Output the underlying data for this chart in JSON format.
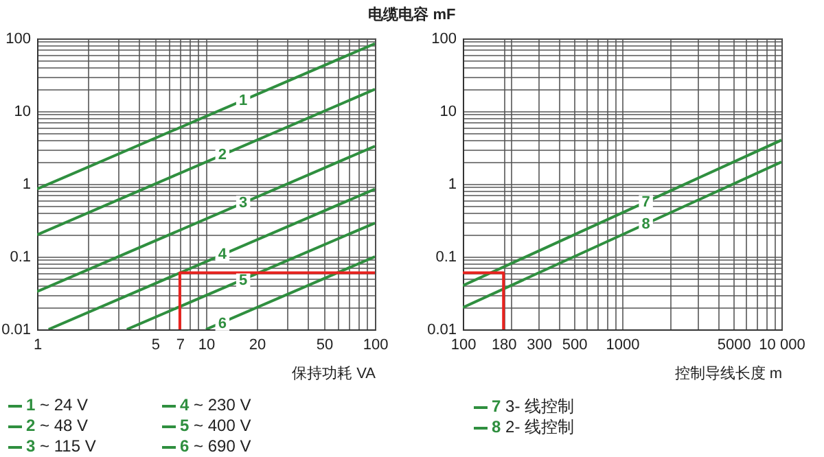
{
  "chart_data": [
    {
      "type": "line",
      "title": "电缆电容 mF",
      "xlabel": "保持功耗 VA",
      "log": "xy",
      "grid": true,
      "legend": "bottom",
      "xlim": [
        1,
        100
      ],
      "ylim": [
        0.01,
        100
      ],
      "xticks": [
        1,
        5,
        7,
        10,
        20,
        50,
        100
      ],
      "yticks": [
        0.01,
        0.1,
        1,
        10,
        100
      ],
      "series": [
        {
          "name": "1 ~ 24 V",
          "color": "#2f8f3f",
          "x": [
            1,
            100
          ],
          "values": [
            0.85,
            85
          ]
        },
        {
          "name": "2 ~ 48 V",
          "color": "#2f8f3f",
          "x": [
            1,
            100
          ],
          "values": [
            0.2,
            20
          ]
        },
        {
          "name": "3 ~ 115 V",
          "color": "#2f8f3f",
          "x": [
            1,
            100
          ],
          "values": [
            0.033,
            3.3
          ]
        },
        {
          "name": "4 ~ 230 V",
          "color": "#2f8f3f",
          "x": [
            1.17,
            100
          ],
          "values": [
            0.01,
            0.85
          ]
        },
        {
          "name": "5 ~ 400 V",
          "color": "#2f8f3f",
          "x": [
            3.4,
            100
          ],
          "values": [
            0.01,
            0.29
          ]
        },
        {
          "name": "6 ~ 690 V",
          "color": "#2f8f3f",
          "x": [
            10,
            100
          ],
          "values": [
            0.01,
            0.1
          ]
        },
        {
          "color": "#e8231f",
          "x": [
            7,
            7,
            100
          ],
          "values": [
            0.01,
            0.06,
            0.06
          ]
        }
      ],
      "annotations": [
        {
          "text": "1",
          "x": 16.6,
          "y": 14
        },
        {
          "text": "2",
          "x": 12.5,
          "y": 2.5
        },
        {
          "text": "3",
          "x": 16.6,
          "y": 0.55
        },
        {
          "text": "4",
          "x": 12.5,
          "y": 0.106
        },
        {
          "text": "5",
          "x": 16.6,
          "y": 0.047
        },
        {
          "text": "6",
          "x": 12.5,
          "y": 0.012
        }
      ]
    },
    {
      "type": "line",
      "xlabel": "控制导线长度 m",
      "log": "xy",
      "grid": true,
      "legend": "bottom",
      "xlim": [
        100,
        10000
      ],
      "ylim": [
        0.01,
        100
      ],
      "xticks": [
        100,
        180,
        300,
        500,
        1000,
        5000,
        {
          "value": 10000,
          "label": "10 000"
        }
      ],
      "yticks": [
        0.01,
        0.1,
        1,
        10,
        100
      ],
      "series": [
        {
          "name": "7 3- 线控制",
          "color": "#2f8f3f",
          "x": [
            100,
            10000
          ],
          "values": [
            0.04,
            4
          ]
        },
        {
          "name": "8 2- 线控制",
          "color": "#2f8f3f",
          "x": [
            100,
            10000
          ],
          "values": [
            0.02,
            2
          ]
        },
        {
          "color": "#e8231f",
          "x": [
            100,
            180,
            180
          ],
          "values": [
            0.06,
            0.06,
            0.01
          ]
        }
      ],
      "annotations": [
        {
          "text": "7",
          "x": 1410,
          "y": 0.56
        },
        {
          "text": "8",
          "x": 1410,
          "y": 0.28
        }
      ]
    }
  ]
}
